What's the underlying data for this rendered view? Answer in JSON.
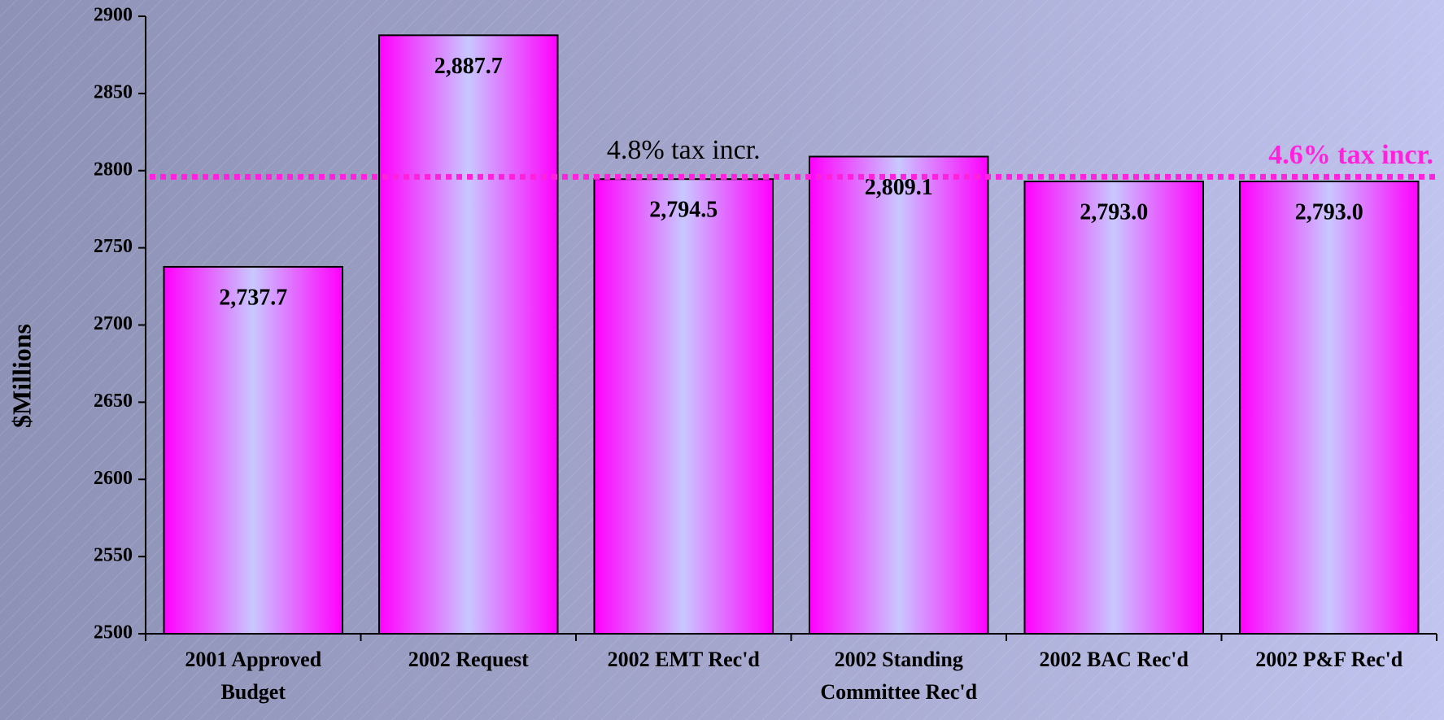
{
  "chart_data": {
    "type": "bar",
    "y_label": "$Millions",
    "categories": [
      "2001 Approved Budget",
      "2002 Request",
      "2002 EMT Rec'd",
      "2002 Standing Committee Rec'd",
      "2002 BAC Rec'd",
      "2002 P&F Rec'd"
    ],
    "values": [
      2737.7,
      2887.7,
      2794.5,
      2809.1,
      2793.0,
      2793.0
    ],
    "value_labels": [
      "2,737.7",
      "2,887.7",
      "2,794.5",
      "2,809.1",
      "2,793.0",
      "2,793.0"
    ],
    "ylim": [
      2500,
      2900
    ],
    "yticks": [
      2500,
      2550,
      2600,
      2650,
      2700,
      2750,
      2800,
      2850,
      2900
    ],
    "reference_line": {
      "value": 2796,
      "color": "#ff22dd"
    },
    "annotations": [
      {
        "text": "4.8% tax incr.",
        "color": "#000000"
      },
      {
        "text": "4.6% tax incr.",
        "color": "#ff22dd"
      }
    ],
    "bar_colors": [
      "#ff00ff",
      "#c8c8ff"
    ]
  }
}
